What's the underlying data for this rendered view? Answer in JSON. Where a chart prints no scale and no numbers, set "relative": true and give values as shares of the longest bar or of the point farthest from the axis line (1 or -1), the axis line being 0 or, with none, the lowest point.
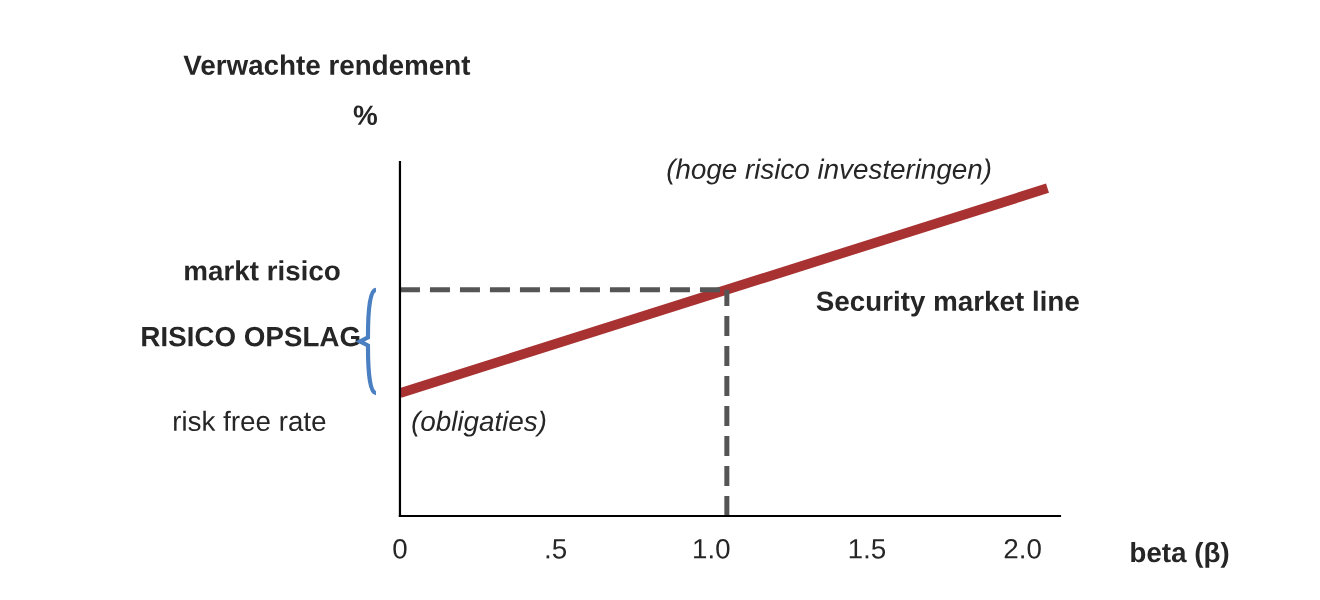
{
  "chart_data": {
    "type": "line",
    "relative": true,
    "xlabel": "beta (β)",
    "ylabel": "Verwachte rendement",
    "xlim": [
      0,
      2.12
    ],
    "xticks": [
      0,
      {
        "value": 0.5,
        "label": ".5"
      },
      {
        "value": 1.0,
        "label": "1.0"
      },
      1.5,
      {
        "value": 2.0,
        "label": "2.0"
      }
    ],
    "series": [
      {
        "color": "#a83232",
        "x": [
          0,
          2.08
        ],
        "values": [
          0.375,
          1
        ]
      },
      {
        "color": "#555555",
        "line_style": "dashed",
        "x": [
          0,
          1.05
        ],
        "values": [
          0.69,
          0.69
        ]
      },
      {
        "color": "#555555",
        "line_style": "dashed",
        "x": [
          1.05,
          1.05
        ],
        "values": [
          0,
          0.69
        ]
      }
    ],
    "annotations": [
      "%",
      "markt risico",
      "RISICO OPSLAG",
      "risk free rate",
      {
        "text": "(obligaties)",
        "x": 0,
        "y": 0.375
      },
      {
        "text": "(hoge risico investeringen)",
        "x": 2.08,
        "y": 1
      },
      "Security market line"
    ],
    "grid": false,
    "legend": false
  }
}
